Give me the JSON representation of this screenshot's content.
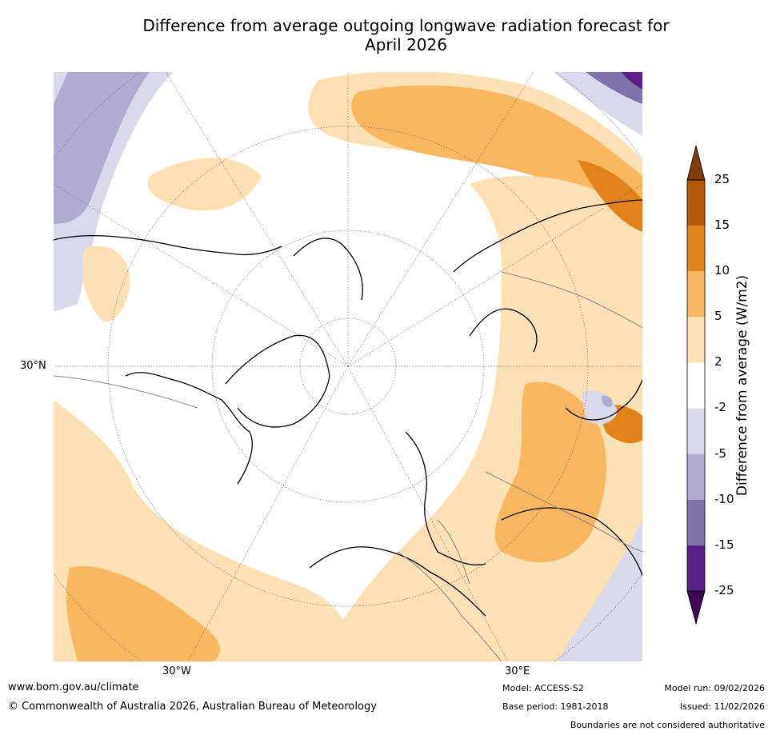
{
  "title": {
    "line1": "Difference from average outgoing longwave radiation forecast for",
    "line2": "April 2026"
  },
  "map": {
    "projection": "north-polar-stereographic",
    "labels": {
      "lat_30n": "30°N",
      "lon_30w": "30°W",
      "lon_30e": "30°E"
    },
    "colors": {
      "neg25": "#3f0754",
      "neg15": "#5b2088",
      "neg10": "#8073ac",
      "neg5": "#b1abd2",
      "neg2": "#d9d9eb",
      "zero": "#ffffff",
      "pos2": "#fde1b4",
      "pos5": "#fbb661",
      "pos10": "#e1821a",
      "pos15": "#b35806",
      "pos25": "#7f3b08",
      "coast": "#000000",
      "borders": "#888888",
      "grid": "#777777"
    }
  },
  "colorbar": {
    "title": "Difference from average (W/m2)",
    "ticks": [
      "25",
      "15",
      "10",
      "5",
      "2",
      "-2",
      "-5",
      "-10",
      "-15",
      "-25"
    ],
    "colors": [
      "#7f3b08",
      "#b35806",
      "#e1821a",
      "#fbb661",
      "#fde1b4",
      "#ffffff",
      "#d9d9eb",
      "#b1abd2",
      "#8073ac",
      "#5b2088",
      "#3f0754"
    ]
  },
  "footer": {
    "website": "www.bom.gov.au/climate",
    "copyright": "© Commonwealth of Australia 2026, Australian Bureau of Meteorology",
    "model": "Model: ACCESS-S2",
    "base_period": "Base period: 1981-2018",
    "model_run": "Model run: 09/02/2026",
    "issued": "Issued: 11/02/2026",
    "disclaimer": "Boundaries are not considered authoritative"
  }
}
